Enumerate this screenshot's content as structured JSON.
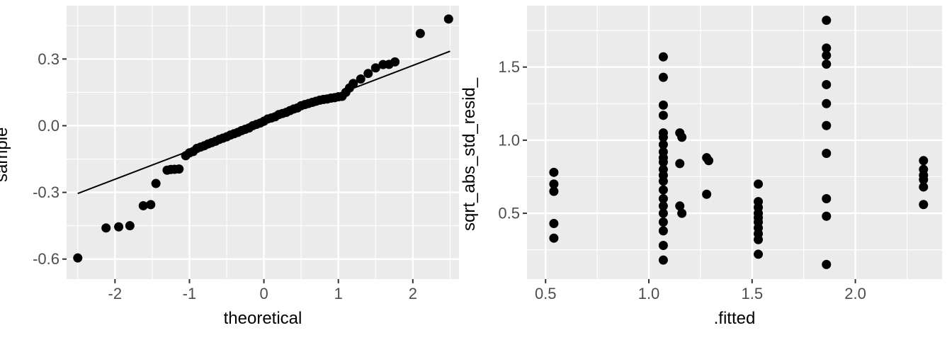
{
  "chart_data": [
    {
      "type": "scatter",
      "title": "",
      "xlabel": "theoretical",
      "ylabel": "sample",
      "xlim": [
        -2.65,
        2.62
      ],
      "ylim": [
        -0.69,
        0.54
      ],
      "xticks": [
        -2,
        -1,
        0,
        1,
        2
      ],
      "xtick_labels": [
        "-2",
        "-1",
        "0",
        "1",
        "2"
      ],
      "yticks": [
        -0.6,
        -0.3,
        0.0,
        0.3
      ],
      "ytick_labels": [
        "-0.6",
        "-0.3",
        "0.0",
        "0.3"
      ],
      "panel_color": "#EBEBEB",
      "grid_color": "#FFFFFF",
      "point_color": "#000000",
      "tick_label_color": "#4D4D4D",
      "line": {
        "x1": -2.5,
        "y1": -0.305,
        "x2": 2.5,
        "y2": 0.335
      },
      "points": [
        [
          -2.5,
          -0.595
        ],
        [
          -2.12,
          -0.46
        ],
        [
          -1.95,
          -0.455
        ],
        [
          -1.8,
          -0.45
        ],
        [
          -1.62,
          -0.36
        ],
        [
          -1.52,
          -0.355
        ],
        [
          -1.45,
          -0.26
        ],
        [
          -1.3,
          -0.2
        ],
        [
          -1.25,
          -0.197
        ],
        [
          -1.2,
          -0.196
        ],
        [
          -1.14,
          -0.195
        ],
        [
          -1.05,
          -0.135
        ],
        [
          -1.0,
          -0.122
        ],
        [
          -0.95,
          -0.116
        ],
        [
          -0.9,
          -0.102
        ],
        [
          -0.85,
          -0.096
        ],
        [
          -0.8,
          -0.09
        ],
        [
          -0.75,
          -0.082
        ],
        [
          -0.7,
          -0.076
        ],
        [
          -0.65,
          -0.07
        ],
        [
          -0.6,
          -0.062
        ],
        [
          -0.55,
          -0.056
        ],
        [
          -0.5,
          -0.05
        ],
        [
          -0.45,
          -0.042
        ],
        [
          -0.4,
          -0.036
        ],
        [
          -0.35,
          -0.03
        ],
        [
          -0.3,
          -0.022
        ],
        [
          -0.25,
          -0.016
        ],
        [
          -0.2,
          -0.01
        ],
        [
          -0.15,
          0.0
        ],
        [
          -0.1,
          0.006
        ],
        [
          -0.05,
          0.012
        ],
        [
          0.0,
          0.02
        ],
        [
          0.05,
          0.03
        ],
        [
          0.1,
          0.035
        ],
        [
          0.15,
          0.04
        ],
        [
          0.2,
          0.05
        ],
        [
          0.25,
          0.055
        ],
        [
          0.3,
          0.06
        ],
        [
          0.35,
          0.068
        ],
        [
          0.4,
          0.075
        ],
        [
          0.45,
          0.08
        ],
        [
          0.5,
          0.09
        ],
        [
          0.55,
          0.095
        ],
        [
          0.6,
          0.1
        ],
        [
          0.65,
          0.105
        ],
        [
          0.7,
          0.11
        ],
        [
          0.75,
          0.115
        ],
        [
          0.8,
          0.118
        ],
        [
          0.85,
          0.12
        ],
        [
          0.9,
          0.124
        ],
        [
          0.95,
          0.126
        ],
        [
          1.0,
          0.13
        ],
        [
          1.05,
          0.132
        ],
        [
          1.1,
          0.15
        ],
        [
          1.15,
          0.17
        ],
        [
          1.2,
          0.19
        ],
        [
          1.3,
          0.21
        ],
        [
          1.4,
          0.235
        ],
        [
          1.5,
          0.26
        ],
        [
          1.6,
          0.275
        ],
        [
          1.68,
          0.276
        ],
        [
          1.76,
          0.287
        ],
        [
          2.1,
          0.415
        ],
        [
          2.48,
          0.48
        ]
      ]
    },
    {
      "type": "scatter",
      "title": "",
      "xlabel": ".fitted",
      "ylabel": "sqrt_abs_std_resid_",
      "xlim": [
        0.41,
        2.42
      ],
      "ylim": [
        0.05,
        1.92
      ],
      "xticks": [
        0.5,
        1.0,
        1.5,
        2.0
      ],
      "xtick_labels": [
        "0.5",
        "1.0",
        "1.5",
        "2.0"
      ],
      "yticks": [
        0.5,
        1.0,
        1.5
      ],
      "ytick_labels": [
        "0.5",
        "1.0",
        "1.5"
      ],
      "panel_color": "#EBEBEB",
      "grid_color": "#FFFFFF",
      "point_color": "#000000",
      "tick_label_color": "#4D4D4D",
      "line": null,
      "points": [
        [
          0.54,
          0.78
        ],
        [
          0.54,
          0.7
        ],
        [
          0.54,
          0.65
        ],
        [
          0.54,
          0.43
        ],
        [
          0.54,
          0.33
        ],
        [
          1.07,
          1.57
        ],
        [
          1.07,
          1.43
        ],
        [
          1.07,
          1.24
        ],
        [
          1.07,
          1.17
        ],
        [
          1.07,
          1.05
        ],
        [
          1.07,
          1.02
        ],
        [
          1.07,
          0.97
        ],
        [
          1.07,
          0.92
        ],
        [
          1.07,
          0.88
        ],
        [
          1.07,
          0.85
        ],
        [
          1.07,
          0.8
        ],
        [
          1.07,
          0.76
        ],
        [
          1.07,
          0.72
        ],
        [
          1.07,
          0.66
        ],
        [
          1.07,
          0.6
        ],
        [
          1.07,
          0.55
        ],
        [
          1.07,
          0.5
        ],
        [
          1.07,
          0.44
        ],
        [
          1.07,
          0.38
        ],
        [
          1.07,
          0.28
        ],
        [
          1.07,
          0.18
        ],
        [
          1.15,
          1.05
        ],
        [
          1.16,
          1.02
        ],
        [
          1.15,
          0.84
        ],
        [
          1.15,
          0.55
        ],
        [
          1.16,
          0.5
        ],
        [
          1.28,
          0.88
        ],
        [
          1.29,
          0.86
        ],
        [
          1.28,
          0.63
        ],
        [
          1.53,
          0.7
        ],
        [
          1.53,
          0.58
        ],
        [
          1.53,
          0.54
        ],
        [
          1.53,
          0.5
        ],
        [
          1.53,
          0.47
        ],
        [
          1.53,
          0.44
        ],
        [
          1.53,
          0.4
        ],
        [
          1.53,
          0.36
        ],
        [
          1.53,
          0.32
        ],
        [
          1.53,
          0.22
        ],
        [
          1.86,
          1.82
        ],
        [
          1.86,
          1.63
        ],
        [
          1.86,
          1.58
        ],
        [
          1.86,
          1.52
        ],
        [
          1.86,
          1.38
        ],
        [
          1.86,
          1.25
        ],
        [
          1.86,
          1.1
        ],
        [
          1.86,
          0.91
        ],
        [
          1.86,
          0.6
        ],
        [
          1.86,
          0.48
        ],
        [
          1.86,
          0.15
        ],
        [
          2.33,
          0.86
        ],
        [
          2.33,
          0.8
        ],
        [
          2.33,
          0.76
        ],
        [
          2.33,
          0.73
        ],
        [
          2.33,
          0.68
        ],
        [
          2.33,
          0.56
        ]
      ]
    }
  ]
}
